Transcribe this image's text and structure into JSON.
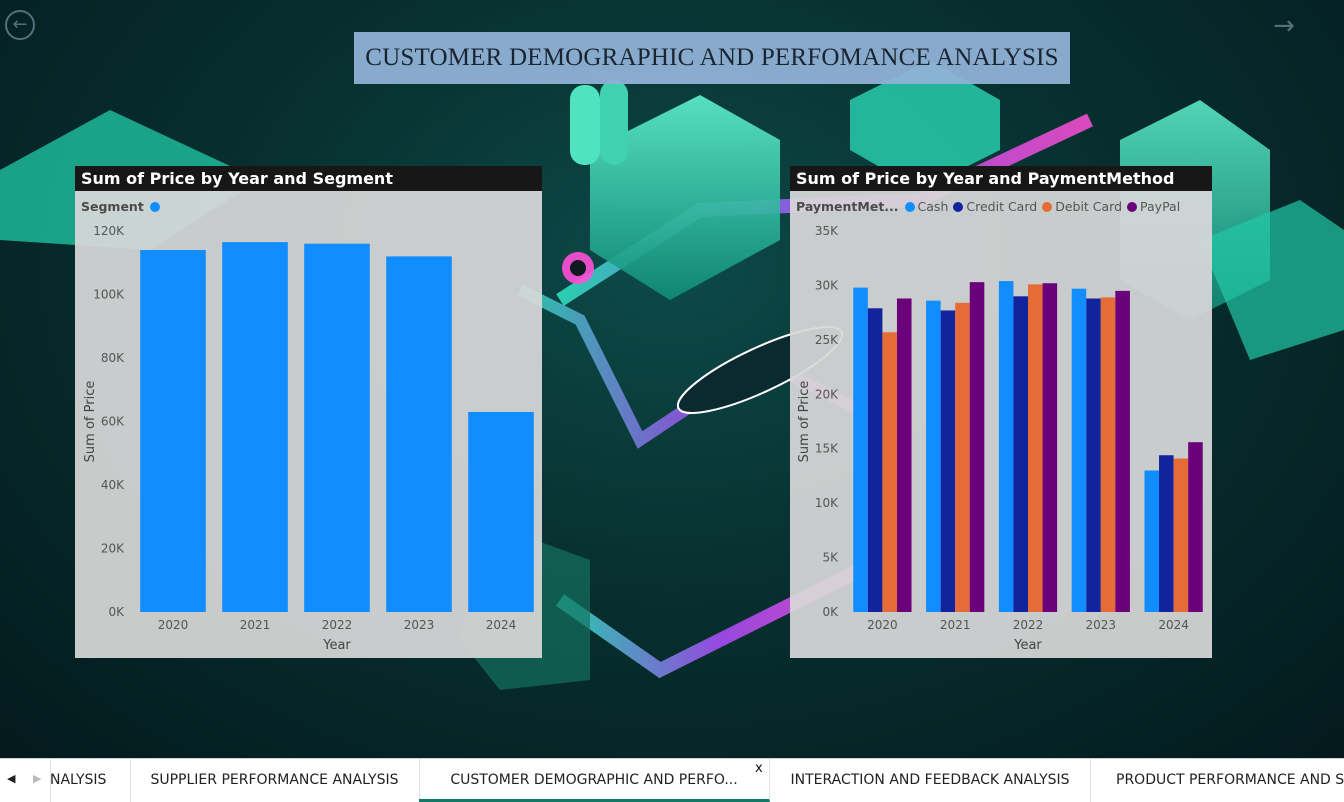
{
  "report": {
    "title": "CUSTOMER DEMOGRAPHIC AND PERFOMANCE ANALYSIS",
    "nav_back_icon": "back-arrow-icon",
    "nav_forward_icon": "forward-arrow-icon"
  },
  "colors": {
    "segment_blue": "#118DFF",
    "cash": "#118DFF",
    "credit_card": "#12239E",
    "debit_card": "#E66C37",
    "paypal": "#6B007B",
    "tab_active_underline": "#117865"
  },
  "chart_data": [
    {
      "type": "bar",
      "title": "Sum of Price by Year and Segment",
      "legend_title": "Segment",
      "xlabel": "Year",
      "ylabel": "Sum of Price",
      "categories": [
        "2020",
        "2021",
        "2022",
        "2023",
        "2024"
      ],
      "values": [
        114000,
        116500,
        116000,
        112000,
        63000
      ],
      "ylim": [
        0,
        120000
      ],
      "yticks": [
        "0K",
        "20K",
        "40K",
        "60K",
        "80K",
        "100K",
        "120K"
      ],
      "grid": false,
      "legend_position": "top-left"
    },
    {
      "type": "bar",
      "title": "Sum of Price by Year and PaymentMethod",
      "legend_title": "PaymentMet...",
      "xlabel": "Year",
      "ylabel": "Sum of Price",
      "categories": [
        "2020",
        "2021",
        "2022",
        "2023",
        "2024"
      ],
      "series": [
        {
          "name": "Cash",
          "values": [
            29800,
            28600,
            30400,
            29700,
            13000
          ]
        },
        {
          "name": "Credit Card",
          "values": [
            27900,
            27700,
            29000,
            28800,
            14400
          ]
        },
        {
          "name": "Debit Card",
          "values": [
            25700,
            28400,
            30100,
            28900,
            14100
          ]
        },
        {
          "name": "PayPal",
          "values": [
            28800,
            30300,
            30200,
            29500,
            15600
          ]
        }
      ],
      "ylim": [
        0,
        35000
      ],
      "yticks": [
        "0K",
        "5K",
        "10K",
        "15K",
        "20K",
        "25K",
        "30K",
        "35K"
      ],
      "grid": false,
      "legend_position": "top-left"
    }
  ],
  "tabs": {
    "items": [
      {
        "label": "NALYSIS"
      },
      {
        "label": "SUPPLIER PERFORMANCE ANALYSIS"
      },
      {
        "label": "CUSTOMER DEMOGRAPHIC AND PERFO..."
      },
      {
        "label": "INTERACTION AND FEEDBACK ANALYSIS"
      },
      {
        "label": "PRODUCT PERFORMANCE AND SA"
      }
    ],
    "close_label": "x"
  }
}
